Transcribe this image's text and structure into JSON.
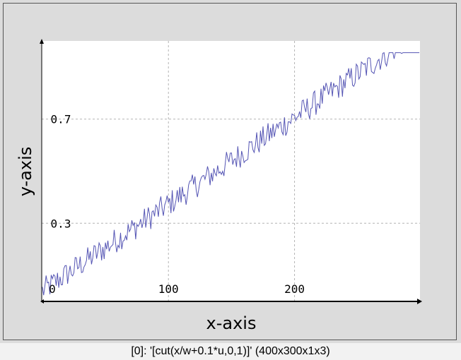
{
  "status_bar": {
    "text": "[0]: '[cut(x/w+0.1*u,0,1)]' (400x300x1x3)"
  },
  "colors": {
    "background": "#dcdcdc",
    "plot_area": "#ffffff",
    "series": "#5555b4",
    "grid": "#b4b4b4",
    "axis": "#000000"
  },
  "chart_data": {
    "type": "line",
    "title": "",
    "xlabel": "x-axis",
    "ylabel": "y-axis",
    "xlim": [
      -0.5,
      299.5
    ],
    "ylim": [
      0,
      1
    ],
    "x_ticks": [
      {
        "value": 0,
        "label": "0"
      },
      {
        "value": 100,
        "label": "100"
      },
      {
        "value": 200,
        "label": "200"
      }
    ],
    "y_ticks": [
      {
        "value": 0.7,
        "label": "0.7"
      },
      {
        "value": 0.3,
        "label": "0.3"
      }
    ],
    "grid": true,
    "legend": "none",
    "series": [
      {
        "formula": "cut(x/w+0.1*u,0,1)",
        "x_start": 0,
        "x_end": 299,
        "x_step": 1,
        "noise_amplitude": 0.1,
        "clip_range": [
          0,
          1
        ]
      }
    ]
  }
}
